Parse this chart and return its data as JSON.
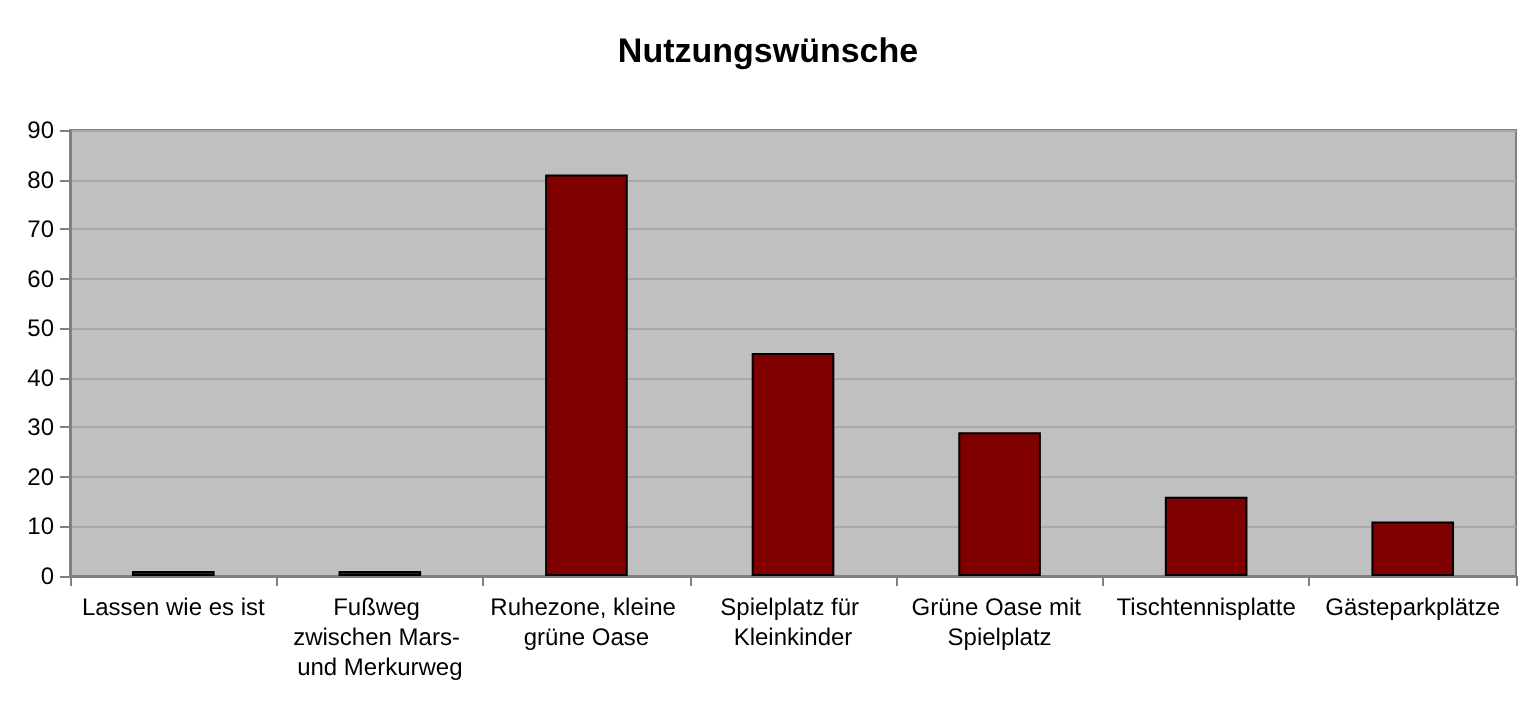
{
  "chart_data": {
    "type": "bar",
    "title": "Nutzungswünsche",
    "categories": [
      "Lassen wie es ist",
      "Fußweg zwischen Mars- und Merkurweg",
      "Ruhezone, kleine grüne Oase",
      "Spielplatz für Kleinkinder",
      "Grüne Oase mit Spielplatz",
      "Tischtennisplatte",
      "Gästeparkplätze"
    ],
    "values": [
      1,
      1,
      81,
      45,
      29,
      16,
      11
    ],
    "color": "#800000",
    "ylim": [
      0,
      90
    ],
    "yticks": [
      0,
      10,
      20,
      30,
      40,
      50,
      60,
      70,
      80,
      90
    ],
    "grid": "y"
  }
}
